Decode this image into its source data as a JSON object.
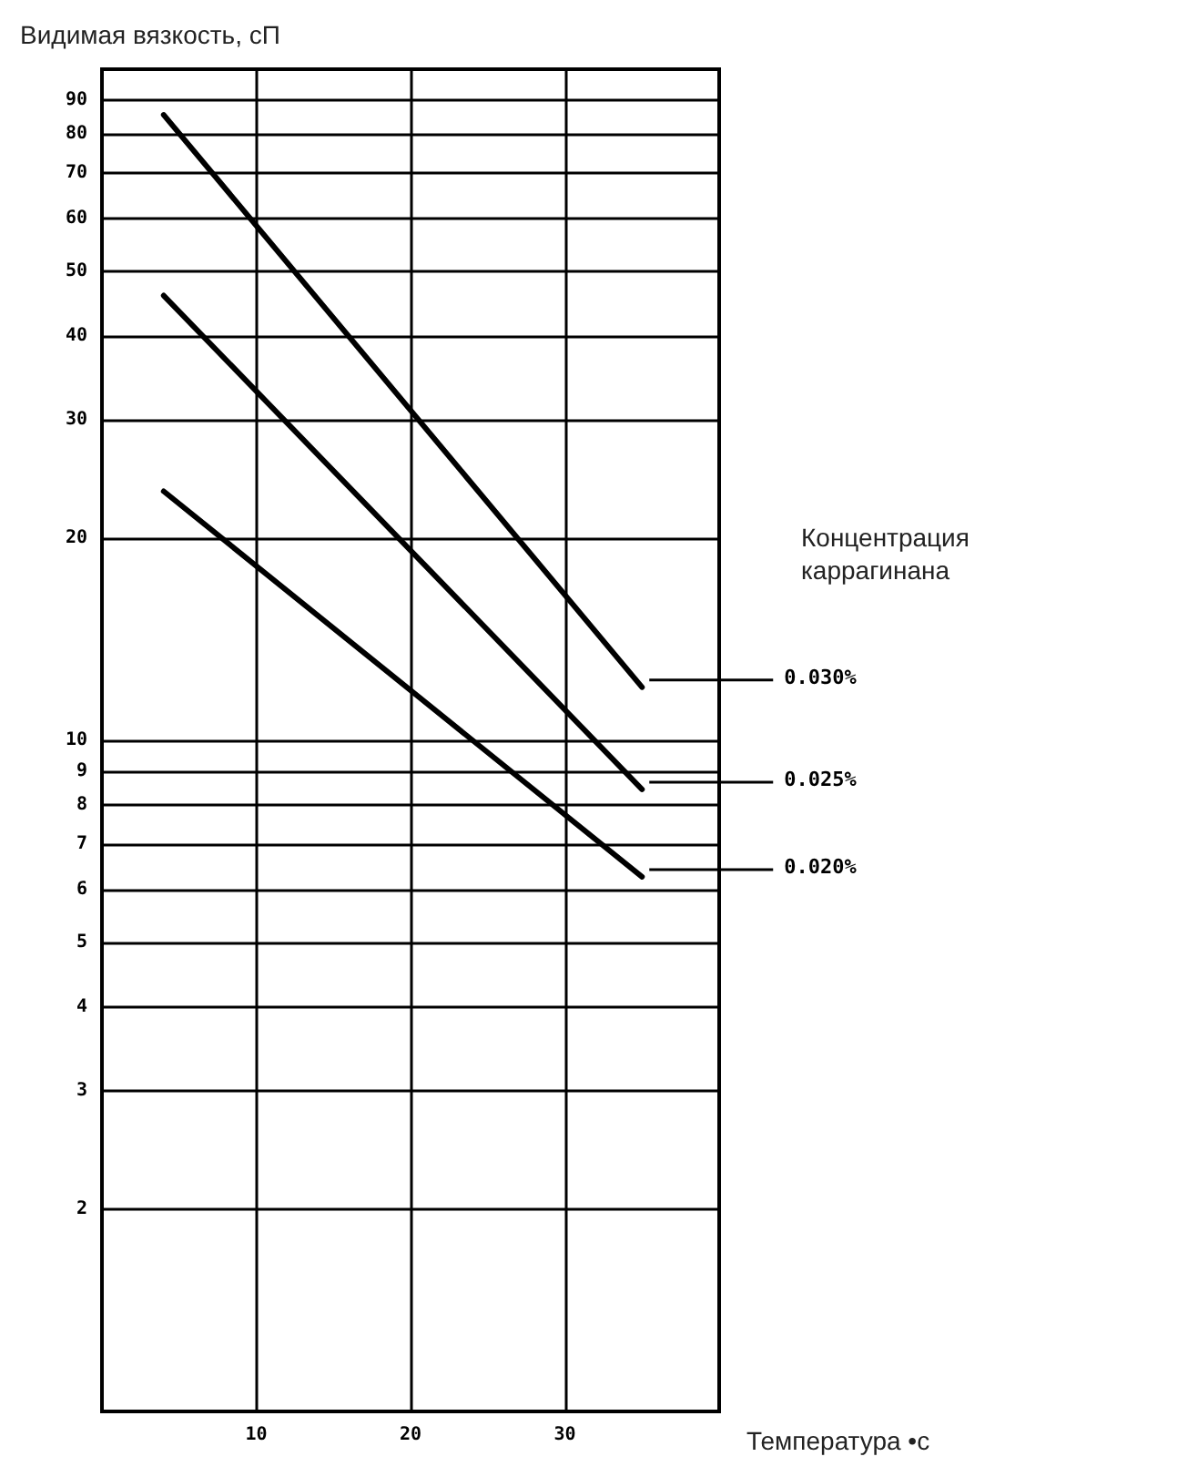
{
  "chart_data": {
    "type": "line",
    "ylabel": "Видимая вязкость, сП",
    "xlabel": "Температура •c",
    "legend_title": "Концентрация каррагинана",
    "x": [
      4,
      35
    ],
    "series": [
      {
        "name": "0.030%",
        "color": "#000000",
        "values": [
          85.5,
          12
        ]
      },
      {
        "name": "0.025%",
        "color": "#000000",
        "values": [
          46,
          8.45
        ]
      },
      {
        "name": "0.020%",
        "color": "#000000",
        "values": [
          23.5,
          6.26
        ]
      }
    ],
    "xlim": [
      0,
      40
    ],
    "xticks": [
      10,
      20,
      30
    ],
    "ylim": [
      1,
      100
    ],
    "yticks": [
      2,
      3,
      4,
      5,
      6,
      7,
      8,
      9,
      10,
      20,
      30,
      40,
      50,
      60,
      70,
      80,
      90
    ],
    "log": "y",
    "grid": true,
    "marker": "none",
    "line_style": "solid"
  }
}
